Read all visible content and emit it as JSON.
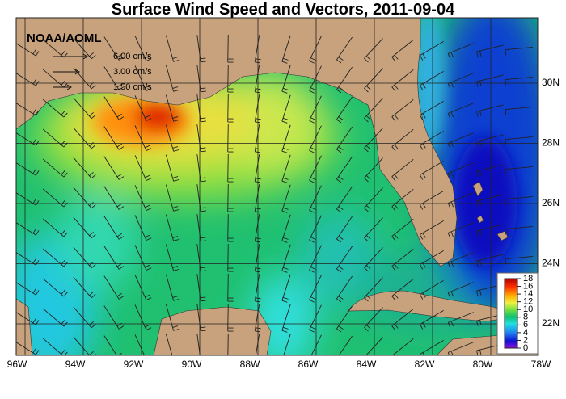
{
  "title": "Surface Wind Speed and Vectors, 2011-09-04",
  "source": "NOAA/AOML",
  "vector_legend": [
    "6.00 cm/s",
    "3.00 cm/s",
    "1.50 cm/s"
  ],
  "longitude_labels": [
    "96W",
    "94W",
    "92W",
    "90W",
    "88W",
    "86W",
    "84W",
    "82W",
    "80W",
    "78W"
  ],
  "latitude_labels": [
    "30N",
    "28N",
    "26N",
    "24N",
    "22N"
  ],
  "colorbar_ticks": [
    18,
    16,
    14,
    12,
    10,
    8,
    6,
    4,
    2,
    0
  ]
}
